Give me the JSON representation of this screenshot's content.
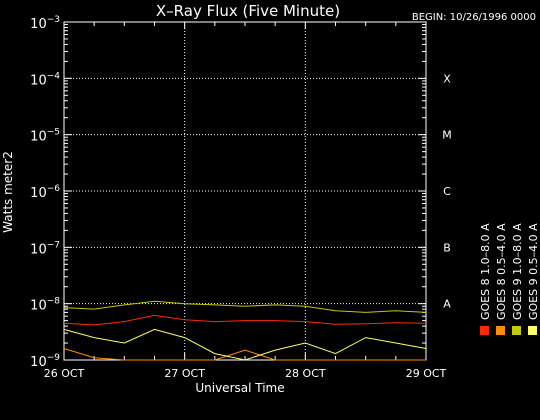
{
  "header": {
    "title": "X–Ray Flux (Five Minute)",
    "begin": "BEGIN: 10/26/1996 0000"
  },
  "chart_data": {
    "type": "line",
    "title": "X–Ray Flux (Five Minute)",
    "xlabel": "Universal Time",
    "ylabel": "Watts meter2",
    "y_scale": "log",
    "ylim": [
      1e-09,
      0.001
    ],
    "xlim": [
      "1996-10-26 00:00",
      "1996-10-29 00:00"
    ],
    "x_tick_labels": [
      "26 OCT",
      "27 OCT",
      "28 OCT",
      "29 OCT"
    ],
    "y_tick_labels": [
      {
        "base": "10",
        "exp": "−3",
        "value": 0.001
      },
      {
        "base": "10",
        "exp": "−4",
        "value": 0.0001
      },
      {
        "base": "10",
        "exp": "−5",
        "value": 1e-05
      },
      {
        "base": "10",
        "exp": "−6",
        "value": 1e-06
      },
      {
        "base": "10",
        "exp": "−7",
        "value": 1e-07
      },
      {
        "base": "10",
        "exp": "−8",
        "value": 1e-08
      },
      {
        "base": "10",
        "exp": "−9",
        "value": 1e-09
      }
    ],
    "flare_classes": [
      {
        "label": "X",
        "value": 0.0001
      },
      {
        "label": "M",
        "value": 1e-05
      },
      {
        "label": "C",
        "value": 1e-06
      },
      {
        "label": "B",
        "value": 1e-07
      },
      {
        "label": "A",
        "value": 1e-08
      }
    ],
    "grid": "dotted",
    "legend_position": "right",
    "series": [
      {
        "name": "GOES 8  1.0–8.0 A",
        "color": "#ff2a00",
        "x": [
          "1996-10-26 00:00",
          "1996-10-26 06:00",
          "1996-10-26 12:00",
          "1996-10-26 18:00",
          "1996-10-27 00:00",
          "1996-10-27 06:00",
          "1996-10-27 12:00",
          "1996-10-27 18:00",
          "1996-10-28 00:00",
          "1996-10-28 06:00",
          "1996-10-28 12:00",
          "1996-10-28 18:00",
          "1996-10-29 00:00"
        ],
        "y": [
          4.5e-09,
          4.2e-09,
          4.8e-09,
          6.2e-09,
          5.2e-09,
          4.8e-09,
          5e-09,
          5e-09,
          4.8e-09,
          4.3e-09,
          4.4e-09,
          4.6e-09,
          4.5e-09
        ]
      },
      {
        "name": "GOES 8  0.5–4.0 A",
        "color": "#ff8c00",
        "x": [
          "1996-10-26 00:00",
          "1996-10-26 06:00",
          "1996-10-26 12:00",
          "1996-10-26 18:00",
          "1996-10-27 00:00",
          "1996-10-27 06:00",
          "1996-10-27 12:00",
          "1996-10-27 18:00",
          "1996-10-28 00:00",
          "1996-10-28 06:00",
          "1996-10-28 12:00",
          "1996-10-28 18:00",
          "1996-10-29 00:00"
        ],
        "y": [
          1.6e-09,
          1.1e-09,
          1e-09,
          1e-09,
          1e-09,
          1e-09,
          1.5e-09,
          1e-09,
          1e-09,
          1e-09,
          1e-09,
          1e-09,
          1e-09
        ]
      },
      {
        "name": "GOES 9  1.0–8.0 A",
        "color": "#c8c800",
        "x": [
          "1996-10-26 00:00",
          "1996-10-26 06:00",
          "1996-10-26 12:00",
          "1996-10-26 18:00",
          "1996-10-27 00:00",
          "1996-10-27 06:00",
          "1996-10-27 12:00",
          "1996-10-27 18:00",
          "1996-10-28 00:00",
          "1996-10-28 06:00",
          "1996-10-28 12:00",
          "1996-10-28 18:00",
          "1996-10-29 00:00"
        ],
        "y": [
          8.5e-09,
          8e-09,
          9.5e-09,
          1.1e-08,
          1e-08,
          9.5e-09,
          9e-09,
          9.5e-09,
          9e-09,
          7.5e-09,
          7e-09,
          7.5e-09,
          7e-09
        ]
      },
      {
        "name": "GOES 9  0.5–4.0 A",
        "color": "#ffff66",
        "x": [
          "1996-10-26 00:00",
          "1996-10-26 06:00",
          "1996-10-26 12:00",
          "1996-10-26 18:00",
          "1996-10-27 00:00",
          "1996-10-27 06:00",
          "1996-10-27 12:00",
          "1996-10-27 18:00",
          "1996-10-28 00:00",
          "1996-10-28 06:00",
          "1996-10-28 12:00",
          "1996-10-28 18:00",
          "1996-10-29 00:00"
        ],
        "y": [
          3.5e-09,
          2.5e-09,
          2e-09,
          3.5e-09,
          2.5e-09,
          1.3e-09,
          1e-09,
          1.5e-09,
          2e-09,
          1.3e-09,
          2.5e-09,
          2e-09,
          1.6e-09
        ]
      }
    ]
  }
}
